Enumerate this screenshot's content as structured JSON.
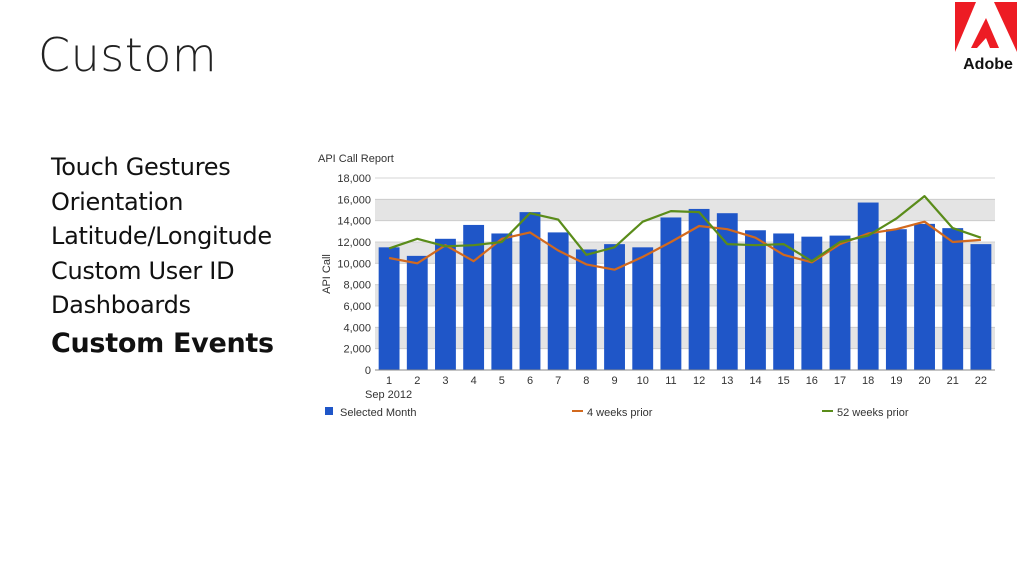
{
  "slide": {
    "title": "Custom",
    "logo_text": "Adobe",
    "bullets": [
      "Touch Gestures",
      "Orientation",
      "Latitude/Longitude",
      "Custom User ID",
      "Dashboards",
      "Custom Events"
    ],
    "emphasized_bullet_index": 5
  },
  "colors": {
    "logo_red": "#ed1c24",
    "bar_blue": "#1f56c8",
    "line_orange": "#d2691e",
    "line_green": "#5a8c1a",
    "band_grey": "#e4e4e4"
  },
  "chart_data": {
    "type": "bar",
    "title": "API Call Report",
    "ylabel": "API Call",
    "xlabel": "Sep 2012",
    "ylim": [
      0,
      18000
    ],
    "yticks": [
      "0",
      "2,000",
      "4,000",
      "6,000",
      "8,000",
      "10,000",
      "12,000",
      "14,000",
      "16,000",
      "18,000"
    ],
    "categories": [
      "1",
      "2",
      "3",
      "4",
      "5",
      "6",
      "7",
      "8",
      "9",
      "10",
      "11",
      "12",
      "13",
      "14",
      "15",
      "16",
      "17",
      "18",
      "19",
      "20",
      "21",
      "22"
    ],
    "grid": true,
    "legend_position": "bottom",
    "series": [
      {
        "name": "Selected Month",
        "kind": "bar",
        "values": [
          11500,
          10700,
          12300,
          13600,
          12800,
          14800,
          12900,
          11300,
          11800,
          11500,
          14300,
          15100,
          14700,
          13100,
          12800,
          12500,
          12600,
          15700,
          13200,
          13700,
          13300,
          11800
        ]
      },
      {
        "name": "4 weeks prior",
        "kind": "line",
        "values": [
          10500,
          10000,
          11700,
          10200,
          12300,
          12900,
          11200,
          9900,
          9400,
          10600,
          12000,
          13500,
          13200,
          12400,
          10800,
          10100,
          11800,
          12800,
          13200,
          13900,
          12000,
          12200
        ]
      },
      {
        "name": "52 weeks prior",
        "kind": "line",
        "values": [
          11400,
          12300,
          11600,
          11700,
          12000,
          14700,
          14100,
          10800,
          11500,
          13900,
          14900,
          14800,
          11800,
          11700,
          11800,
          10200,
          12000,
          12600,
          14200,
          16300,
          13300,
          12400
        ]
      }
    ]
  }
}
